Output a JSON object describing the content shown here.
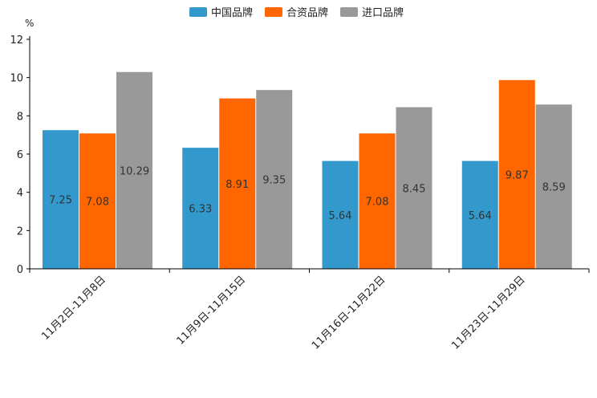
{
  "chart_data": {
    "type": "bar",
    "title": "",
    "xlabel": "",
    "ylabel": "%",
    "ylim": [
      0,
      12
    ],
    "yticks": [
      0,
      2,
      4,
      6,
      8,
      10,
      12
    ],
    "grid": false,
    "legend_position": "top-center",
    "categories": [
      "11月2日-11月8日",
      "11月9日-11月15日",
      "11月16日-11月22日",
      "11月23日-11月29日"
    ],
    "series": [
      {
        "name": "中国品牌",
        "color": "#3399CC",
        "values": [
          7.25,
          6.33,
          5.64,
          5.64
        ]
      },
      {
        "name": "合资品牌",
        "color": "#FF6600",
        "values": [
          7.08,
          8.91,
          7.08,
          9.87
        ]
      },
      {
        "name": "进口品牌",
        "color": "#999999",
        "values": [
          10.29,
          9.35,
          8.45,
          8.59
        ]
      }
    ]
  }
}
